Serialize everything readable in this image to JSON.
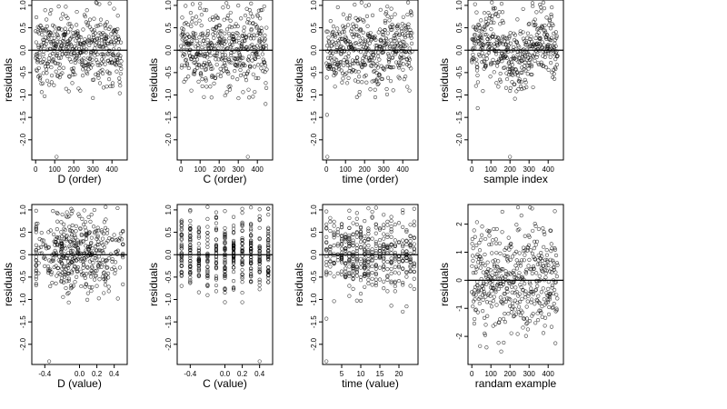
{
  "figure": {
    "background": "#ffffff",
    "point_color": "#000000",
    "reference_line_color": "#000000"
  },
  "chart_data": [
    {
      "type": "scatter",
      "panel": "top-1",
      "xlabel": "D (order)",
      "ylabel": "residuals",
      "xticks": [
        "0",
        "100",
        "200",
        "300",
        "400"
      ],
      "xtick_values": [
        0,
        100,
        200,
        300,
        400
      ],
      "yticks": [
        "1.0",
        "0.5",
        "0.0",
        "-0.5",
        "-1.0",
        "-1.5",
        "-2.0"
      ],
      "ytick_values": [
        1.0,
        0.5,
        0.0,
        -0.5,
        -1.0,
        -1.5,
        -2.0
      ],
      "xlim": [
        -20,
        480
      ],
      "ylim": [
        -2.45,
        1.12
      ],
      "reference_line": 0,
      "x_mode": "index",
      "n_points": 450,
      "y_pattern": "scatter",
      "x_categories": [],
      "outliers": [
        {
          "x": 110,
          "y": -2.38
        }
      ],
      "style": "open-circle"
    },
    {
      "type": "scatter",
      "panel": "top-2",
      "xlabel": "C (order)",
      "ylabel": "residuals",
      "xticks": [
        "0",
        "100",
        "200",
        "300",
        "400"
      ],
      "xtick_values": [
        0,
        100,
        200,
        300,
        400
      ],
      "yticks": [
        "1.0",
        "0.5",
        "0.0",
        "-0.5",
        "-1.0",
        "-1.5",
        "-2.0"
      ],
      "ytick_values": [
        1.0,
        0.5,
        0.0,
        -0.5,
        -1.0,
        -1.5,
        -2.0
      ],
      "xlim": [
        -20,
        480
      ],
      "ylim": [
        -2.45,
        1.12
      ],
      "reference_line": 0,
      "x_mode": "index",
      "n_points": 450,
      "y_pattern": "scatter",
      "x_categories": [],
      "outliers": [
        {
          "x": 350,
          "y": -2.38
        }
      ],
      "style": "open-circle"
    },
    {
      "type": "scatter",
      "panel": "top-3",
      "xlabel": "time (order)",
      "ylabel": "residuals",
      "xticks": [
        "0",
        "100",
        "200",
        "300",
        "400"
      ],
      "xtick_values": [
        0,
        100,
        200,
        300,
        400
      ],
      "yticks": [
        "1.0",
        "0.5",
        "0.0",
        "-0.5",
        "-1.0",
        "-1.5",
        "-2.0"
      ],
      "ytick_values": [
        1.0,
        0.5,
        0.0,
        -0.5,
        -1.0,
        -1.5,
        -2.0
      ],
      "xlim": [
        -20,
        480
      ],
      "ylim": [
        -2.45,
        1.12
      ],
      "reference_line": 0,
      "x_mode": "index",
      "n_points": 450,
      "y_pattern": "scatter",
      "x_categories": [],
      "outliers": [
        {
          "x": 5,
          "y": -2.38
        }
      ],
      "style": "open-circle"
    },
    {
      "type": "scatter",
      "panel": "top-4",
      "xlabel": "sample index",
      "ylabel": "residuals",
      "xticks": [
        "0",
        "100",
        "200",
        "300",
        "400"
      ],
      "xtick_values": [
        0,
        100,
        200,
        300,
        400
      ],
      "yticks": [
        "1.0",
        "0.5",
        "0.0",
        "-0.5",
        "-1.0",
        "-1.5",
        "-2.0"
      ],
      "ytick_values": [
        1.0,
        0.5,
        0.0,
        -0.5,
        -1.0,
        -1.5,
        -2.0
      ],
      "xlim": [
        -20,
        480
      ],
      "ylim": [
        -2.45,
        1.12
      ],
      "reference_line": 0,
      "x_mode": "index",
      "n_points": 450,
      "y_pattern": "wave",
      "x_categories": [],
      "outliers": [
        {
          "x": 200,
          "y": -2.38
        }
      ],
      "style": "open-circle"
    },
    {
      "type": "scatter",
      "panel": "bottom-1",
      "xlabel": "D (value)",
      "ylabel": "residuals",
      "xticks": [
        "-0.4",
        "0.0",
        "0.2",
        "0.4"
      ],
      "xtick_values": [
        -0.4,
        0.0,
        0.2,
        0.4
      ],
      "yticks": [
        "1.0",
        "0.5",
        "0.0",
        "-0.5",
        "-1.0",
        "-1.5",
        "-2.0"
      ],
      "ytick_values": [
        1.0,
        0.5,
        0.0,
        -0.5,
        -1.0,
        -1.5,
        -2.0
      ],
      "xlim": [
        -0.55,
        0.55
      ],
      "ylim": [
        -2.45,
        1.12
      ],
      "reference_line": 0,
      "x_mode": "value",
      "n_points": 450,
      "y_pattern": "scatter",
      "x_categories": [],
      "outliers": [
        {
          "x": -0.35,
          "y": -2.38
        }
      ],
      "style": "open-circle"
    },
    {
      "type": "scatter",
      "panel": "bottom-2",
      "xlabel": "C (value)",
      "ylabel": "residuals",
      "xticks": [
        "-0.4",
        "0.0",
        "0.2",
        "0.4"
      ],
      "xtick_values": [
        -0.4,
        0.0,
        0.2,
        0.4
      ],
      "yticks": [
        "1.0",
        "0.5",
        "0.0",
        "-0.5",
        "-1.0",
        "-1.5",
        "-2.0"
      ],
      "ytick_values": [
        1.0,
        0.5,
        0.0,
        -0.5,
        -1.0,
        -1.5,
        -2.0
      ],
      "xlim": [
        -0.55,
        0.55
      ],
      "ylim": [
        -2.45,
        1.12
      ],
      "reference_line": 0,
      "x_mode": "category",
      "n_points": 450,
      "y_pattern": "scatter",
      "x_categories": [
        -0.5,
        -0.4,
        -0.3,
        -0.2,
        -0.1,
        0.0,
        0.1,
        0.2,
        0.3,
        0.4,
        0.5
      ],
      "outliers": [
        {
          "x": 0.4,
          "y": -2.38
        }
      ],
      "style": "open-circle"
    },
    {
      "type": "scatter",
      "panel": "bottom-3",
      "xlabel": "time (value)",
      "ylabel": "residuals",
      "xticks": [
        "5",
        "10",
        "15",
        "20"
      ],
      "xtick_values": [
        5,
        10,
        15,
        20
      ],
      "yticks": [
        "1.0",
        "0.5",
        "0.0",
        "-0.5",
        "-1.0",
        "-1.5",
        "-2.0"
      ],
      "ytick_values": [
        1.0,
        0.5,
        0.0,
        -0.5,
        -1.0,
        -1.5,
        -2.0
      ],
      "xlim": [
        0,
        25
      ],
      "ylim": [
        -2.45,
        1.12
      ],
      "reference_line": 0,
      "x_mode": "category",
      "n_points": 450,
      "y_pattern": "scatter",
      "x_categories": [
        1,
        2,
        3,
        4,
        5,
        6,
        7,
        8,
        9,
        10,
        11,
        12,
        13,
        14,
        15,
        16,
        17,
        18,
        19,
        20,
        21,
        22,
        23,
        24
      ],
      "outliers": [
        {
          "x": 1,
          "y": -2.38
        }
      ],
      "style": "open-circle"
    },
    {
      "type": "scatter",
      "panel": "bottom-4",
      "xlabel": "randam example",
      "ylabel": "residuals",
      "xticks": [
        "0",
        "100",
        "200",
        "300",
        "400"
      ],
      "xtick_values": [
        0,
        100,
        200,
        300,
        400
      ],
      "yticks": [
        "2",
        "1",
        "0",
        "-1",
        "-2"
      ],
      "ytick_values": [
        2,
        1,
        0,
        -1,
        -2
      ],
      "xlim": [
        -20,
        480
      ],
      "ylim": [
        -3.0,
        2.7
      ],
      "reference_line": 0,
      "x_mode": "index",
      "n_points": 450,
      "y_pattern": "normal",
      "x_categories": [],
      "outliers": [],
      "style": "open-circle"
    }
  ]
}
